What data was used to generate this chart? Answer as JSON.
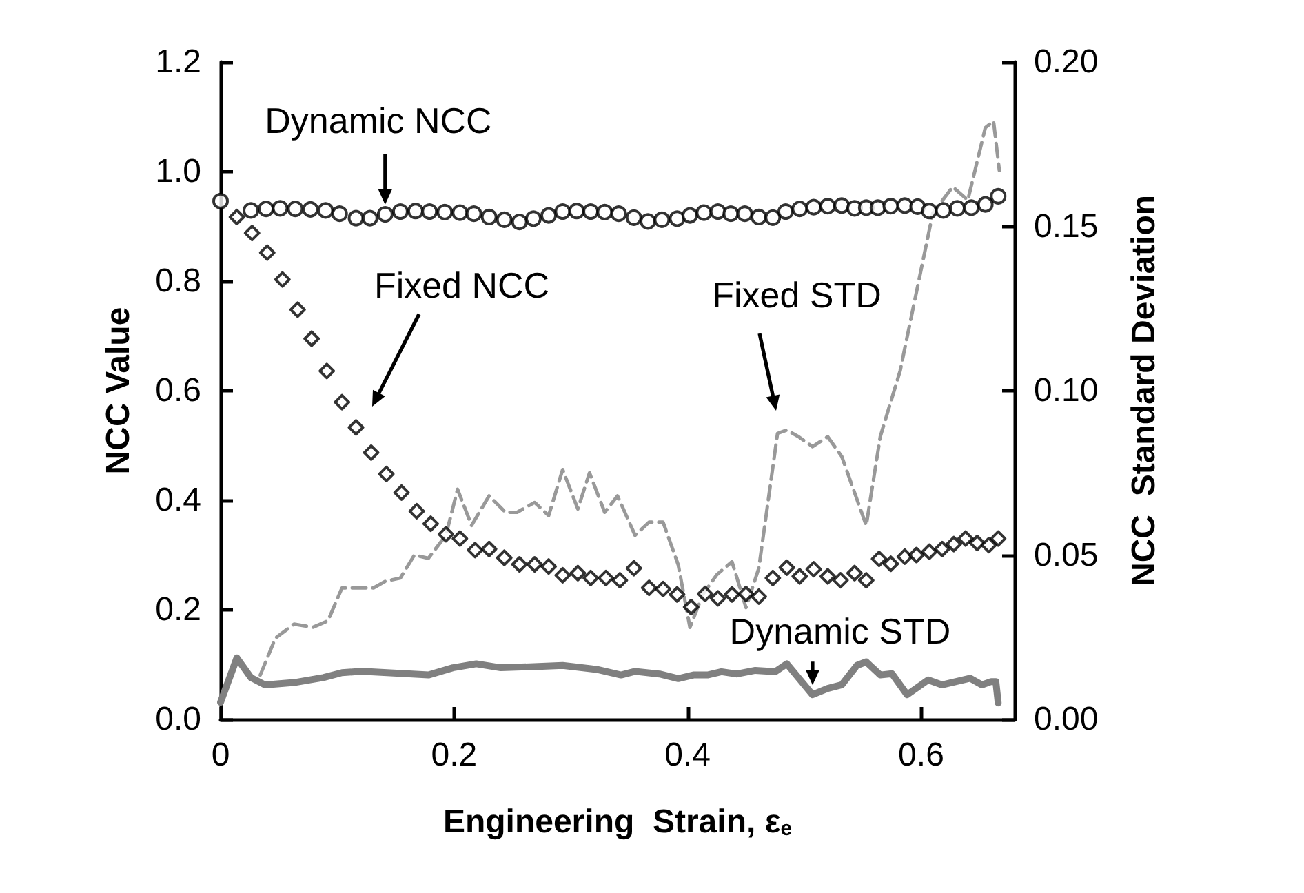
{
  "chart_data": {
    "type": "scatter",
    "xlabel": "Engineering  Strain, ε$_{e}$",
    "ylabel": "NCC Value",
    "y2label": "NCC  Standard Deviation",
    "xlim": [
      0,
      0.68
    ],
    "xticks": [
      0,
      {
        "value": 0.2,
        "label": "0.2"
      },
      {
        "value": 0.4,
        "label": "0.4"
      },
      {
        "value": 0.6,
        "label": "0.6"
      }
    ],
    "ylim": [
      0,
      1.2
    ],
    "yticks": [
      {
        "value": 0,
        "label": "0.0"
      },
      {
        "value": 0.2,
        "label": "0.2"
      },
      {
        "value": 0.4,
        "label": "0.4"
      },
      {
        "value": 0.6,
        "label": "0.6"
      },
      {
        "value": 0.8,
        "label": "0.8"
      },
      {
        "value": 1,
        "label": "1.0"
      },
      {
        "value": 1.2,
        "label": "1.2"
      }
    ],
    "y2lim": [
      0,
      0.2
    ],
    "y2ticks": [
      {
        "value": 0,
        "label": "0.00"
      },
      {
        "value": 0.05,
        "label": "0.05"
      },
      {
        "value": 0.1,
        "label": "0.10"
      },
      {
        "value": 0.15,
        "label": "0.15"
      },
      {
        "value": 0.2,
        "label": "0.20"
      }
    ],
    "grid": false,
    "series": [
      {
        "marker": "circle",
        "color": "#000000",
        "x": [
          0,
          0.026,
          0.039,
          0.051,
          0.064,
          0.077,
          0.09,
          0.102,
          0.116,
          0.128,
          0.141,
          0.154,
          0.167,
          0.179,
          0.192,
          0.205,
          0.217,
          0.23,
          0.243,
          0.256,
          0.268,
          0.281,
          0.293,
          0.305,
          0.317,
          0.329,
          0.341,
          0.354,
          0.366,
          0.378,
          0.391,
          0.402,
          0.414,
          0.426,
          0.437,
          0.449,
          0.461,
          0.473,
          0.484,
          0.496,
          0.508,
          0.52,
          0.532,
          0.543,
          0.553,
          0.563,
          0.574,
          0.586,
          0.597,
          0.607,
          0.619,
          0.631,
          0.643,
          0.655,
          0.666
        ],
        "values": [
          0.946,
          0.929,
          0.932,
          0.933,
          0.932,
          0.931,
          0.929,
          0.923,
          0.915,
          0.915,
          0.922,
          0.927,
          0.928,
          0.927,
          0.926,
          0.925,
          0.923,
          0.917,
          0.912,
          0.908,
          0.914,
          0.92,
          0.927,
          0.928,
          0.927,
          0.926,
          0.923,
          0.916,
          0.909,
          0.912,
          0.914,
          0.92,
          0.925,
          0.927,
          0.923,
          0.923,
          0.917,
          0.916,
          0.927,
          0.932,
          0.935,
          0.937,
          0.938,
          0.933,
          0.934,
          0.934,
          0.937,
          0.938,
          0.936,
          0.928,
          0.929,
          0.933,
          0.934,
          0.94,
          0.955
        ]
      },
      {
        "marker": "diamond",
        "color": "#000000",
        "x": [
          0.014,
          0.027,
          0.04,
          0.053,
          0.066,
          0.078,
          0.091,
          0.104,
          0.116,
          0.129,
          0.142,
          0.155,
          0.168,
          0.18,
          0.193,
          0.205,
          0.218,
          0.23,
          0.243,
          0.256,
          0.269,
          0.281,
          0.293,
          0.306,
          0.317,
          0.33,
          0.342,
          0.354,
          0.367,
          0.379,
          0.391,
          0.403,
          0.415,
          0.426,
          0.438,
          0.45,
          0.461,
          0.473,
          0.485,
          0.496,
          0.508,
          0.52,
          0.531,
          0.543,
          0.553,
          0.564,
          0.574,
          0.586,
          0.596,
          0.607,
          0.618,
          0.628,
          0.638,
          0.648,
          0.658,
          0.666
        ],
        "values": [
          0.917,
          0.888,
          0.852,
          0.803,
          0.748,
          0.695,
          0.636,
          0.579,
          0.533,
          0.487,
          0.448,
          0.414,
          0.38,
          0.357,
          0.338,
          0.33,
          0.309,
          0.311,
          0.295,
          0.283,
          0.283,
          0.279,
          0.263,
          0.267,
          0.258,
          0.258,
          0.254,
          0.276,
          0.24,
          0.238,
          0.228,
          0.205,
          0.229,
          0.221,
          0.228,
          0.229,
          0.224,
          0.258,
          0.277,
          0.261,
          0.274,
          0.261,
          0.254,
          0.267,
          0.254,
          0.293,
          0.284,
          0.297,
          0.3,
          0.306,
          0.311,
          0.32,
          0.33,
          0.322,
          0.318,
          0.33
        ]
      },
      {
        "type": "line",
        "axis": "y2",
        "marker": "none",
        "line_style": "dashed",
        "color": "#999999",
        "x": [
          0.034,
          0.047,
          0.063,
          0.079,
          0.092,
          0.104,
          0.121,
          0.131,
          0.141,
          0.154,
          0.166,
          0.178,
          0.193,
          0.203,
          0.215,
          0.23,
          0.244,
          0.254,
          0.269,
          0.281,
          0.293,
          0.306,
          0.316,
          0.329,
          0.34,
          0.355,
          0.367,
          0.379,
          0.392,
          0.402,
          0.413,
          0.425,
          0.438,
          0.45,
          0.461,
          0.477,
          0.485,
          0.495,
          0.507,
          0.52,
          0.532,
          0.553,
          0.565,
          0.582,
          0.61,
          0.627,
          0.64,
          0.655,
          0.662,
          0.667
        ],
        "values": [
          0.0135,
          0.0247,
          0.029,
          0.028,
          0.03,
          0.04,
          0.04,
          0.04,
          0.042,
          0.043,
          0.05,
          0.049,
          0.056,
          0.07,
          0.059,
          0.068,
          0.063,
          0.063,
          0.066,
          0.062,
          0.076,
          0.064,
          0.075,
          0.063,
          0.068,
          0.056,
          0.06,
          0.06,
          0.047,
          0.028,
          0.038,
          0.044,
          0.048,
          0.034,
          0.046,
          0.087,
          0.088,
          0.086,
          0.083,
          0.086,
          0.08,
          0.059,
          0.086,
          0.106,
          0.154,
          0.162,
          0.158,
          0.18,
          0.182,
          0.167
        ]
      },
      {
        "type": "line",
        "axis": "y2",
        "marker": "none",
        "line_style": "solid",
        "color": "#808080",
        "x": [
          0,
          0.014,
          0.026,
          0.038,
          0.063,
          0.088,
          0.104,
          0.121,
          0.178,
          0.199,
          0.219,
          0.24,
          0.265,
          0.293,
          0.322,
          0.343,
          0.355,
          0.376,
          0.392,
          0.405,
          0.417,
          0.429,
          0.442,
          0.458,
          0.475,
          0.485,
          0.507,
          0.52,
          0.532,
          0.545,
          0.553,
          0.565,
          0.575,
          0.588,
          0.606,
          0.618,
          0.63,
          0.642,
          0.652,
          0.66,
          0.664,
          0.666
        ],
        "values": [
          0.0052,
          0.0187,
          0.0127,
          0.0105,
          0.0112,
          0.0127,
          0.0142,
          0.0146,
          0.0135,
          0.0157,
          0.0169,
          0.0157,
          0.016,
          0.0164,
          0.0152,
          0.0135,
          0.0146,
          0.0138,
          0.0124,
          0.0135,
          0.0135,
          0.0145,
          0.0138,
          0.0149,
          0.0145,
          0.0169,
          0.0075,
          0.0094,
          0.0105,
          0.0164,
          0.0175,
          0.0135,
          0.0139,
          0.0075,
          0.012,
          0.0105,
          0.0115,
          0.0125,
          0.0105,
          0.0115,
          0.0115,
          0.005
        ]
      }
    ],
    "annotations": [
      {
        "text": "Dynamic NCC",
        "x": 0.141,
        "y": 0.922
      },
      "Fixed NCC",
      "Fixed STD",
      {
        "text": "Dynamic STD",
        "x": 0.507,
        "y": 0.045
      }
    ]
  }
}
